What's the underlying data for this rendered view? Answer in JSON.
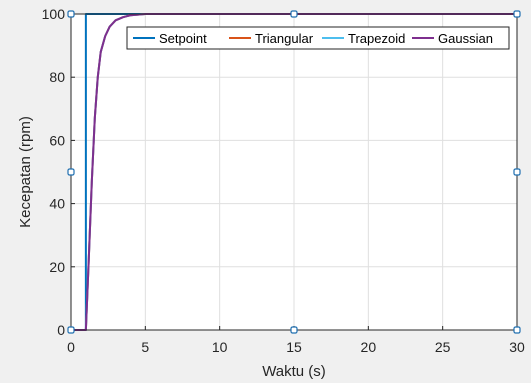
{
  "chart_data": {
    "type": "line",
    "title": "",
    "xlabel": "Waktu (s)",
    "ylabel": "Kecepatan (rpm)",
    "xlim": [
      0,
      30
    ],
    "ylim": [
      0,
      100
    ],
    "xticks": [
      0,
      5,
      10,
      15,
      20,
      25,
      30
    ],
    "yticks": [
      0,
      20,
      40,
      60,
      80,
      100
    ],
    "xtick_labels": [
      "0",
      "5",
      "10",
      "15",
      "20",
      "25",
      "30"
    ],
    "ytick_labels": [
      "0",
      "20",
      "40",
      "60",
      "80",
      "100"
    ],
    "grid": true,
    "legend_position": "top-right",
    "legend_orientation": "horizontal",
    "series": [
      {
        "name": "Setpoint",
        "color": "#0072bd",
        "x": [
          0,
          1,
          1,
          30
        ],
        "y": [
          0,
          0,
          100,
          100
        ]
      },
      {
        "name": "Triangular",
        "color": "#d95319",
        "x": [
          0,
          1,
          1.2,
          1.4,
          1.6,
          1.8,
          2.0,
          2.3,
          2.6,
          3.0,
          3.5,
          4.0,
          5.0,
          30
        ],
        "y": [
          0,
          0,
          23,
          47,
          67,
          80,
          88,
          93,
          96,
          98,
          99,
          99.6,
          100,
          100
        ]
      },
      {
        "name": "Trapezoid",
        "color": "#4dbeee",
        "x": [
          0,
          1,
          1.2,
          1.4,
          1.6,
          1.8,
          2.0,
          2.3,
          2.6,
          3.0,
          3.5,
          4.0,
          5.0,
          30
        ],
        "y": [
          0,
          0,
          23,
          47,
          67,
          80,
          88,
          93,
          96,
          98,
          99,
          99.6,
          100,
          100
        ]
      },
      {
        "name": "Gaussian",
        "color": "#7e2f8e",
        "x": [
          0,
          1,
          1.2,
          1.4,
          1.6,
          1.8,
          2.0,
          2.3,
          2.6,
          3.0,
          3.5,
          4.0,
          5.0,
          30
        ],
        "y": [
          0,
          0,
          23,
          47,
          67,
          80,
          88,
          93,
          96,
          98,
          99,
          99.6,
          100,
          100
        ]
      }
    ],
    "markers": {
      "color": "#1f6fb0",
      "points": [
        {
          "x": 0,
          "y": 100
        },
        {
          "x": 15,
          "y": 100
        },
        {
          "x": 30,
          "y": 100
        },
        {
          "x": 0,
          "y": 50
        },
        {
          "x": 30,
          "y": 50
        },
        {
          "x": 0,
          "y": 0
        },
        {
          "x": 15,
          "y": 0
        },
        {
          "x": 30,
          "y": 0
        }
      ]
    }
  }
}
